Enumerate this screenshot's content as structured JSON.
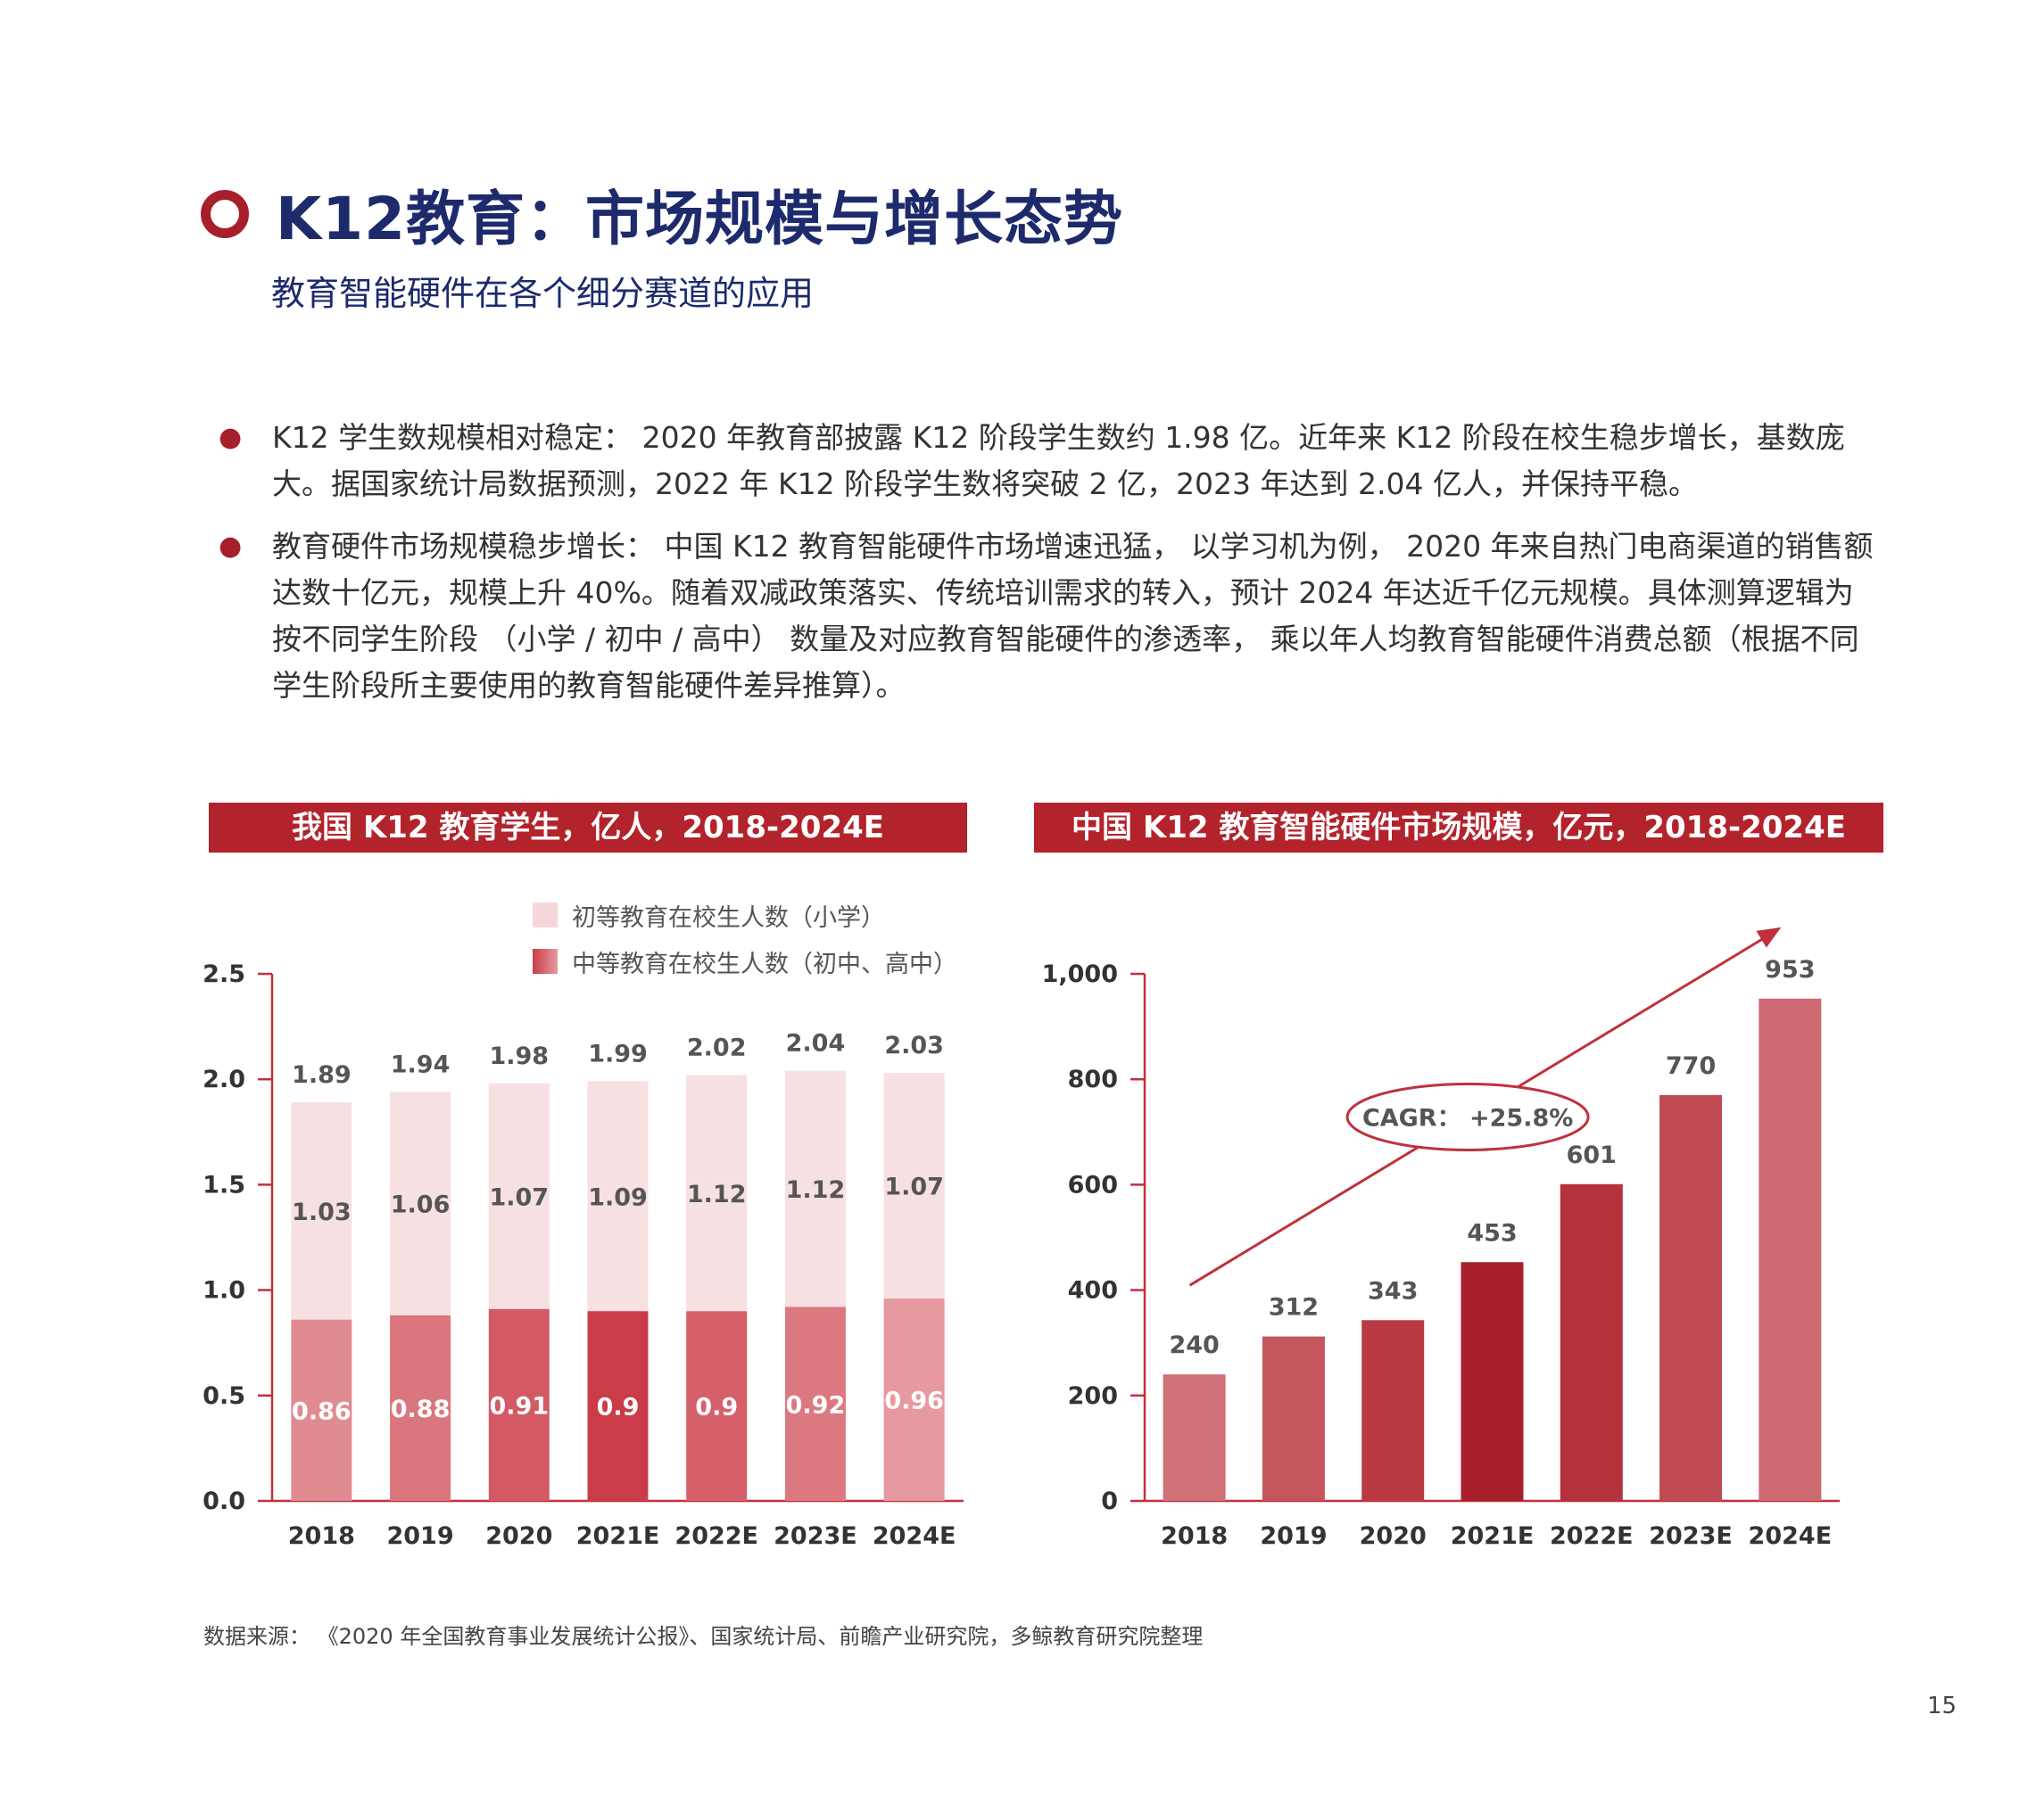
{
  "page": {
    "title": "K12教育：市场规模与增长态势",
    "subtitle": "教育智能硬件在各个细分赛道的应用",
    "bullets": [
      {
        "label": "K12 学生数规模相对稳定：",
        "text": " 2020 年教育部披露 K12 阶段学生数约 1.98 亿。近年来 K12 阶段在校生稳步增长，基数庞大。据国家统计局数据预测，2022 年 K12 阶段学生数将突破 2 亿，2023 年达到 2.04 亿人，并保持平稳。"
      },
      {
        "label": "教育硬件市场规模稳步增长：",
        "text": " 中国 K12 教育智能硬件市场增速迅猛， 以学习机为例， 2020 年来自热门电商渠道的销售额达数十亿元，规模上升 40%。随着双减政策落实、传统培训需求的转入，预计 2024 年达近千亿元规模。具体测算逻辑为按不同学生阶段 （小学 / 初中 / 高中） 数量及对应教育智能硬件的渗透率， 乘以年人均教育智能硬件消费总额（根据不同学生阶段所主要使用的教育智能硬件差异推算）。"
      }
    ],
    "source": "数据来源：  《2020 年全国教育事业发展统计公报》、国家统计局、前瞻产业研究院，多鲸教育研究院整理",
    "page_number": "15",
    "colors": {
      "brand_red": "#b3232c",
      "navy": "#1d2a6b",
      "axis": "#c0313d"
    }
  },
  "chart_data": [
    {
      "type": "bar",
      "stacked": true,
      "title": "我国 K12 教育学生，亿人，2018-2024E",
      "categories": [
        "2018",
        "2019",
        "2020",
        "2021E",
        "2022E",
        "2023E",
        "2024E"
      ],
      "series": [
        {
          "name": "中等教育在校生人数（初中、高中）",
          "values": [
            0.86,
            0.88,
            0.91,
            0.9,
            0.9,
            0.92,
            0.96
          ],
          "labels": [
            "0.86",
            "0.88",
            "0.91",
            "0.9",
            "0.9",
            "0.92",
            "0.96"
          ],
          "colors": [
            "#e08b92",
            "#db767e",
            "#d35a64",
            "#c93c48",
            "#d5606a",
            "#dc7880",
            "#e6999f"
          ]
        },
        {
          "name": "初等教育在校生人数（小学）",
          "values": [
            1.03,
            1.06,
            1.07,
            1.09,
            1.12,
            1.12,
            1.07
          ],
          "labels": [
            "1.03",
            "1.06",
            "1.07",
            "1.09",
            "1.12",
            "1.12",
            "1.07"
          ],
          "color": "#f7e0e2"
        }
      ],
      "totals": [
        "1.89",
        "1.94",
        "1.98",
        "1.99",
        "2.02",
        "2.04",
        "2.03"
      ],
      "ylim": [
        0,
        2.5
      ],
      "yticks": [
        "0.0",
        "0.5",
        "1.0",
        "1.5",
        "2.0",
        "2.5"
      ],
      "legend_position": "top-right"
    },
    {
      "type": "bar",
      "title": "中国 K12 教育智能硬件市场规模，亿元，2018-2024E",
      "categories": [
        "2018",
        "2019",
        "2020",
        "2021E",
        "2022E",
        "2023E",
        "2024E"
      ],
      "values": [
        240,
        312,
        343,
        453,
        601,
        770,
        953
      ],
      "labels": [
        "240",
        "312",
        "343",
        "453",
        "601",
        "770",
        "953"
      ],
      "colors": [
        "#d07077",
        "#c4555d",
        "#b93a43",
        "#a71f2a",
        "#b3323b",
        "#bf4a52",
        "#cd6a71"
      ],
      "ylim": [
        0,
        1000
      ],
      "yticks": [
        "0",
        "200",
        "400",
        "600",
        "800",
        "1,000"
      ],
      "annotation": "CAGR：  +25.8%"
    }
  ]
}
